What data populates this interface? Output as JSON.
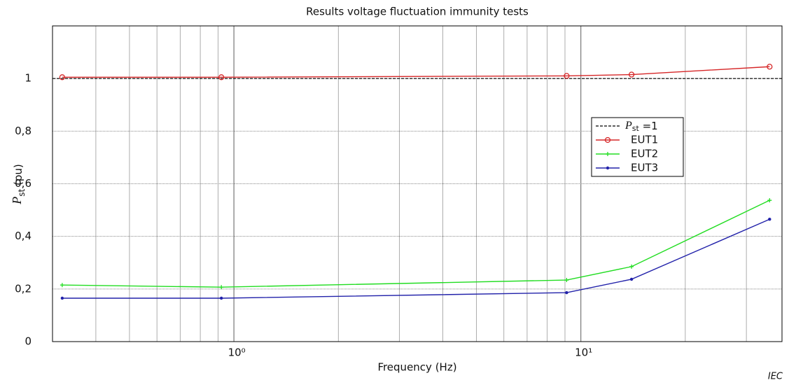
{
  "chart_data": {
    "type": "line",
    "title": "Results voltage fluctuation immunity tests",
    "xlabel": "Frequency  (Hz)",
    "ylabel": {
      "main": "P",
      "sub": "st",
      "rest": "  (pu)"
    },
    "note": "IEC",
    "x": [
      0.32,
      0.92,
      9.1,
      14,
      35
    ],
    "series": [
      {
        "name": "EUT1",
        "color": "#d62728",
        "marker": "circle",
        "values": [
          1.005,
          1.005,
          1.01,
          1.015,
          1.045
        ]
      },
      {
        "name": "EUT2",
        "color": "#22dd22",
        "marker": "plus",
        "values": [
          0.215,
          0.207,
          0.234,
          0.285,
          0.537
        ]
      },
      {
        "name": "EUT3",
        "color": "#2222aa",
        "marker": "dot",
        "values": [
          0.165,
          0.165,
          0.186,
          0.237,
          0.465
        ]
      }
    ],
    "reference": {
      "name": {
        "main": "P",
        "sub": "st",
        "rest": " =1"
      },
      "value": 1,
      "color": "#000000",
      "dash": true
    },
    "xscale": "log",
    "xlim": [
      0.3,
      38
    ],
    "xticks": [
      {
        "value": 1,
        "label": "10⁰"
      },
      {
        "value": 10,
        "label": "10¹"
      }
    ],
    "xminor": [
      0.3,
      0.4,
      0.5,
      0.6,
      0.7,
      0.8,
      0.9,
      2,
      3,
      4,
      5,
      6,
      7,
      8,
      9,
      20,
      30
    ],
    "ylim": [
      0,
      1.2
    ],
    "yticks": [
      0,
      {
        "value": 0.2,
        "label": "0,2"
      },
      {
        "value": 0.4,
        "label": "0,4"
      },
      {
        "value": 0.6,
        "label": "0,6"
      },
      {
        "value": 0.8,
        "label": "0,8"
      },
      1
    ],
    "grid": true,
    "legend": "right"
  }
}
